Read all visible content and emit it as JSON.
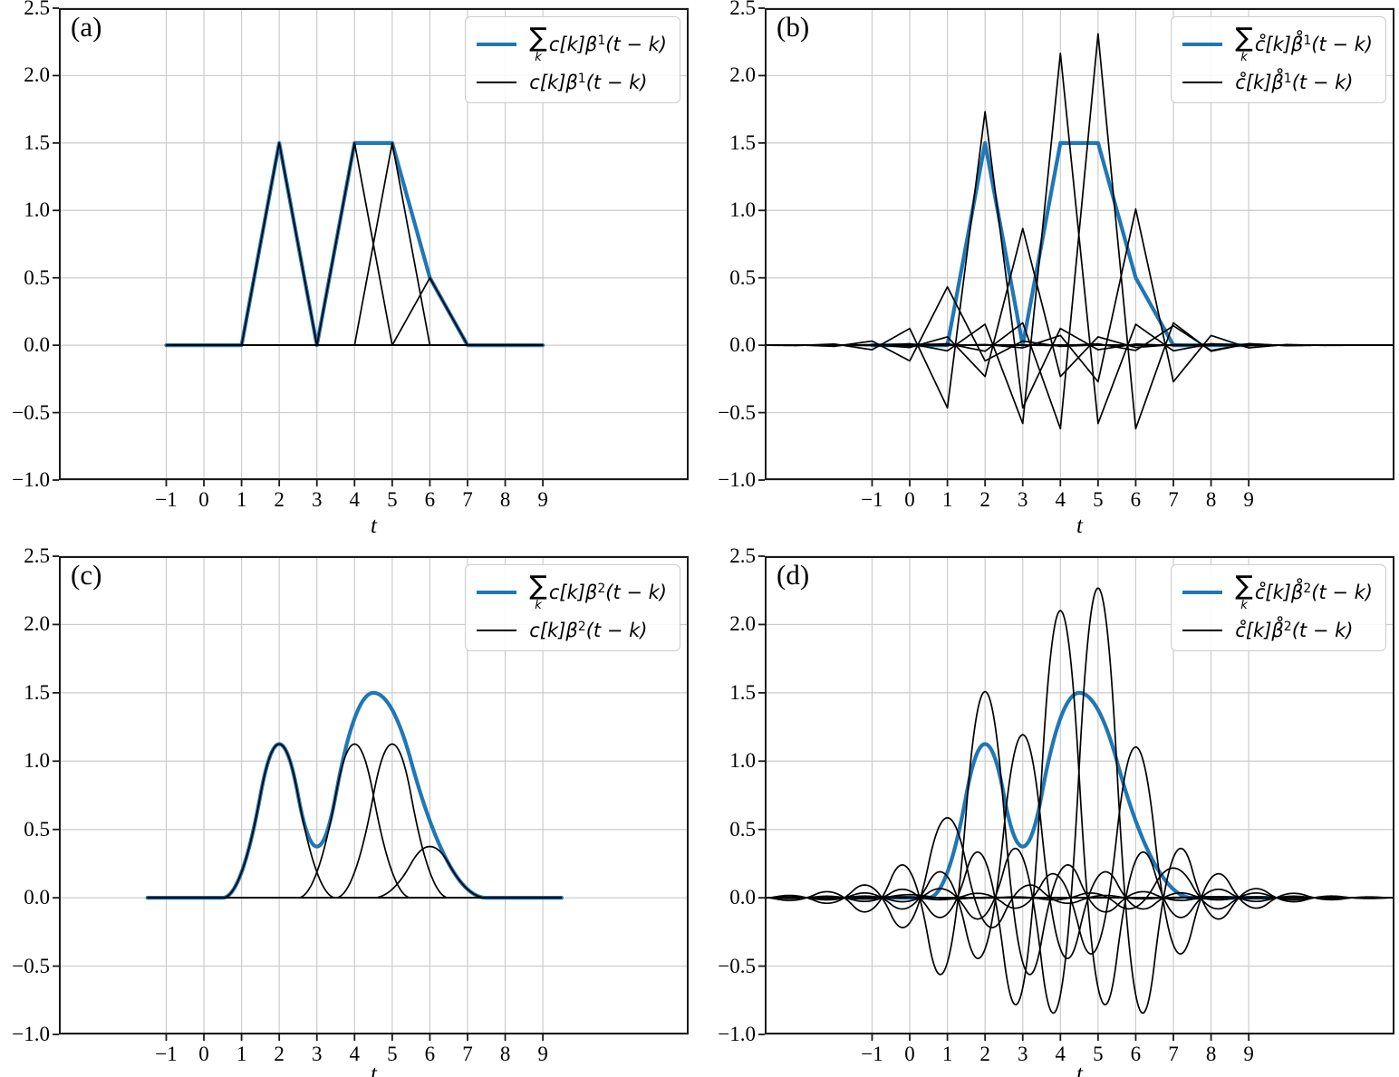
{
  "figure": {
    "background": "#ffffff",
    "grid_color": "#cccccc",
    "axis_color": "#1a1a1a",
    "legend_border_color": "#cccccc"
  },
  "chart_data": [
    {
      "panel_label": "(a)",
      "type": "line",
      "xlabel": "t",
      "xlim": [
        -3.85,
        12.87
      ],
      "ylim": [
        -1.0,
        2.5
      ],
      "xticks": [
        -1,
        0,
        1,
        2,
        3,
        4,
        5,
        6,
        7,
        8,
        9
      ],
      "xticklabels": [
        "−1",
        "0",
        "1",
        "2",
        "3",
        "4",
        "5",
        "6",
        "7",
        "8",
        "9"
      ],
      "yticks": [
        -1.0,
        -0.5,
        0.0,
        0.5,
        1.0,
        1.5,
        2.0,
        2.5
      ],
      "yticklabels": [
        "−1.0",
        "−0.5",
        "0.0",
        "0.5",
        "1.0",
        "1.5",
        "2.0",
        "2.5"
      ],
      "grid": true,
      "legend_position": "upper right",
      "spline_degree": 1,
      "basis": "bspline",
      "colors": {
        "sum": "#1f77b4",
        "terms": "#000000"
      },
      "coefficients": {
        "k_start": 0,
        "values": [
          0,
          0,
          1.5,
          0,
          1.5,
          1.5,
          0.5,
          0,
          0
        ]
      },
      "sum_coefficients": {
        "k_start": 0,
        "values": [
          0,
          0,
          1.5,
          0,
          1.5,
          1.5,
          0.5,
          0,
          0
        ]
      },
      "curve_t_range": [
        -1,
        9
      ],
      "sum_t_range": [
        -1,
        9
      ],
      "sum_values_at_integers": {
        "t": [
          1,
          2,
          3,
          4,
          5,
          6,
          7
        ],
        "f": [
          0,
          1.5,
          0,
          1.5,
          1.5,
          0.5,
          0
        ]
      },
      "legend": {
        "sum": {
          "sigma": "∑",
          "sigma_sub": "k",
          "body": "c[k]β",
          "sup": "1",
          "tail": "(t − k)"
        },
        "term": {
          "body": "c[k]β",
          "sup": "1",
          "tail": "(t − k)"
        }
      }
    },
    {
      "panel_label": "(b)",
      "type": "line",
      "xlabel": "t",
      "xlim": [
        -3.85,
        12.87
      ],
      "ylim": [
        -1.0,
        2.5
      ],
      "xticks": [
        -1,
        0,
        1,
        2,
        3,
        4,
        5,
        6,
        7,
        8,
        9
      ],
      "xticklabels": [
        "−1",
        "0",
        "1",
        "2",
        "3",
        "4",
        "5",
        "6",
        "7",
        "8",
        "9"
      ],
      "yticks": [
        -1.0,
        -0.5,
        0.0,
        0.5,
        1.0,
        1.5,
        2.0,
        2.5
      ],
      "yticklabels": [
        "−1.0",
        "−0.5",
        "0.0",
        "0.5",
        "1.0",
        "1.5",
        "2.0",
        "2.5"
      ],
      "grid": true,
      "legend_position": "upper right",
      "spline_degree": 1,
      "basis": "dual",
      "colors": {
        "sum": "#1f77b4",
        "terms": "#000000"
      },
      "coefficients": {
        "k_start": -4,
        "values": [
          0,
          0,
          0,
          0,
          0,
          0.25,
          1.0,
          0.5,
          1.25,
          1.3333,
          0.5833,
          0.0833,
          0,
          0,
          0,
          0,
          0,
          0
        ]
      },
      "sum_coefficients": {
        "k_start": 0,
        "values": [
          0,
          0,
          1.5,
          0,
          1.5,
          1.5,
          0.5,
          0,
          0
        ]
      },
      "curve_t_range": [
        -3.85,
        12.87
      ],
      "sum_t_range": [
        -1,
        9
      ],
      "sum_values_at_integers": {
        "t": [
          1,
          2,
          3,
          4,
          5,
          6,
          7
        ],
        "f": [
          0,
          1.5,
          0,
          1.5,
          1.5,
          0.5,
          0
        ]
      },
      "legend": {
        "sum": {
          "sigma": "∑",
          "sigma_sub": "k",
          "body": "c̊[k]β̊",
          "sup": "1",
          "tail": "(t − k)"
        },
        "term": {
          "body": "c̊[k]β̊",
          "sup": "1",
          "tail": "(t − k)"
        }
      }
    },
    {
      "panel_label": "(c)",
      "type": "line",
      "xlabel": "t",
      "xlim": [
        -3.85,
        12.87
      ],
      "ylim": [
        -1.0,
        2.5
      ],
      "xticks": [
        -1,
        0,
        1,
        2,
        3,
        4,
        5,
        6,
        7,
        8,
        9
      ],
      "xticklabels": [
        "−1",
        "0",
        "1",
        "2",
        "3",
        "4",
        "5",
        "6",
        "7",
        "8",
        "9"
      ],
      "yticks": [
        -1.0,
        -0.5,
        0.0,
        0.5,
        1.0,
        1.5,
        2.0,
        2.5
      ],
      "yticklabels": [
        "−1.0",
        "−0.5",
        "0.0",
        "0.5",
        "1.0",
        "1.5",
        "2.0",
        "2.5"
      ],
      "grid": true,
      "legend_position": "upper right",
      "spline_degree": 2,
      "basis": "bspline",
      "colors": {
        "sum": "#1f77b4",
        "terms": "#000000"
      },
      "coefficients": {
        "k_start": 0,
        "values": [
          0,
          0,
          1.5,
          0,
          1.5,
          1.5,
          0.5,
          0,
          0
        ]
      },
      "sum_coefficients": {
        "k_start": 0,
        "values": [
          0,
          0,
          1.5,
          0,
          1.5,
          1.5,
          0.5,
          0,
          0
        ]
      },
      "curve_t_range": [
        -1.5,
        9.5
      ],
      "sum_t_range": [
        -1.5,
        9.5
      ],
      "sum_values_at_integers": {
        "t": [
          1,
          2,
          3,
          4,
          5,
          6,
          7
        ],
        "f": [
          0.1875,
          1.125,
          0.375,
          1.3125,
          1.375,
          0.5625,
          0.0625
        ]
      },
      "legend": {
        "sum": {
          "sigma": "∑",
          "sigma_sub": "k",
          "body": "c[k]β",
          "sup": "2",
          "tail": "(t − k)"
        },
        "term": {
          "body": "c[k]β",
          "sup": "2",
          "tail": "(t − k)"
        }
      }
    },
    {
      "panel_label": "(d)",
      "type": "line",
      "xlabel": "t",
      "xlim": [
        -3.85,
        12.87
      ],
      "ylim": [
        -1.0,
        2.5
      ],
      "xticks": [
        -1,
        0,
        1,
        2,
        3,
        4,
        5,
        6,
        7,
        8,
        9
      ],
      "xticklabels": [
        "−1",
        "0",
        "1",
        "2",
        "3",
        "4",
        "5",
        "6",
        "7",
        "8",
        "9"
      ],
      "yticks": [
        -1.0,
        -0.5,
        0.0,
        0.5,
        1.0,
        1.5,
        2.0,
        2.5
      ],
      "yticklabels": [
        "−1.0",
        "−0.5",
        "0.0",
        "0.5",
        "1.0",
        "1.5",
        "2.0",
        "2.5"
      ],
      "grid": true,
      "legend_position": "upper right",
      "spline_degree": 2,
      "basis": "dual",
      "colors": {
        "sum": "#1f77b4",
        "terms": "#000000"
      },
      "coefficients": {
        "k_start": -4,
        "values": [
          0,
          0,
          0,
          0,
          0.0125,
          0.325,
          0.8375,
          0.6625,
          1.1667,
          1.2583,
          0.6125,
          0.1208,
          0.0042,
          0,
          0,
          0,
          0,
          0
        ]
      },
      "sum_coefficients": {
        "k_start": 0,
        "values": [
          0,
          0,
          1.5,
          0,
          1.5,
          1.5,
          0.5,
          0,
          0
        ]
      },
      "curve_t_range": [
        -3.85,
        12.87
      ],
      "sum_t_range": [
        -1.5,
        9.5
      ],
      "sum_values_at_integers": {
        "t": [
          1,
          2,
          3,
          4,
          5,
          6,
          7
        ],
        "f": [
          0.1875,
          1.125,
          0.375,
          1.3125,
          1.375,
          0.5625,
          0.0625
        ]
      },
      "legend": {
        "sum": {
          "sigma": "∑",
          "sigma_sub": "k",
          "body": "c̊[k]β̊",
          "sup": "2",
          "tail": "(t − k)"
        },
        "term": {
          "body": "c̊[k]β̊",
          "sup": "2",
          "tail": "(t − k)"
        }
      }
    }
  ]
}
